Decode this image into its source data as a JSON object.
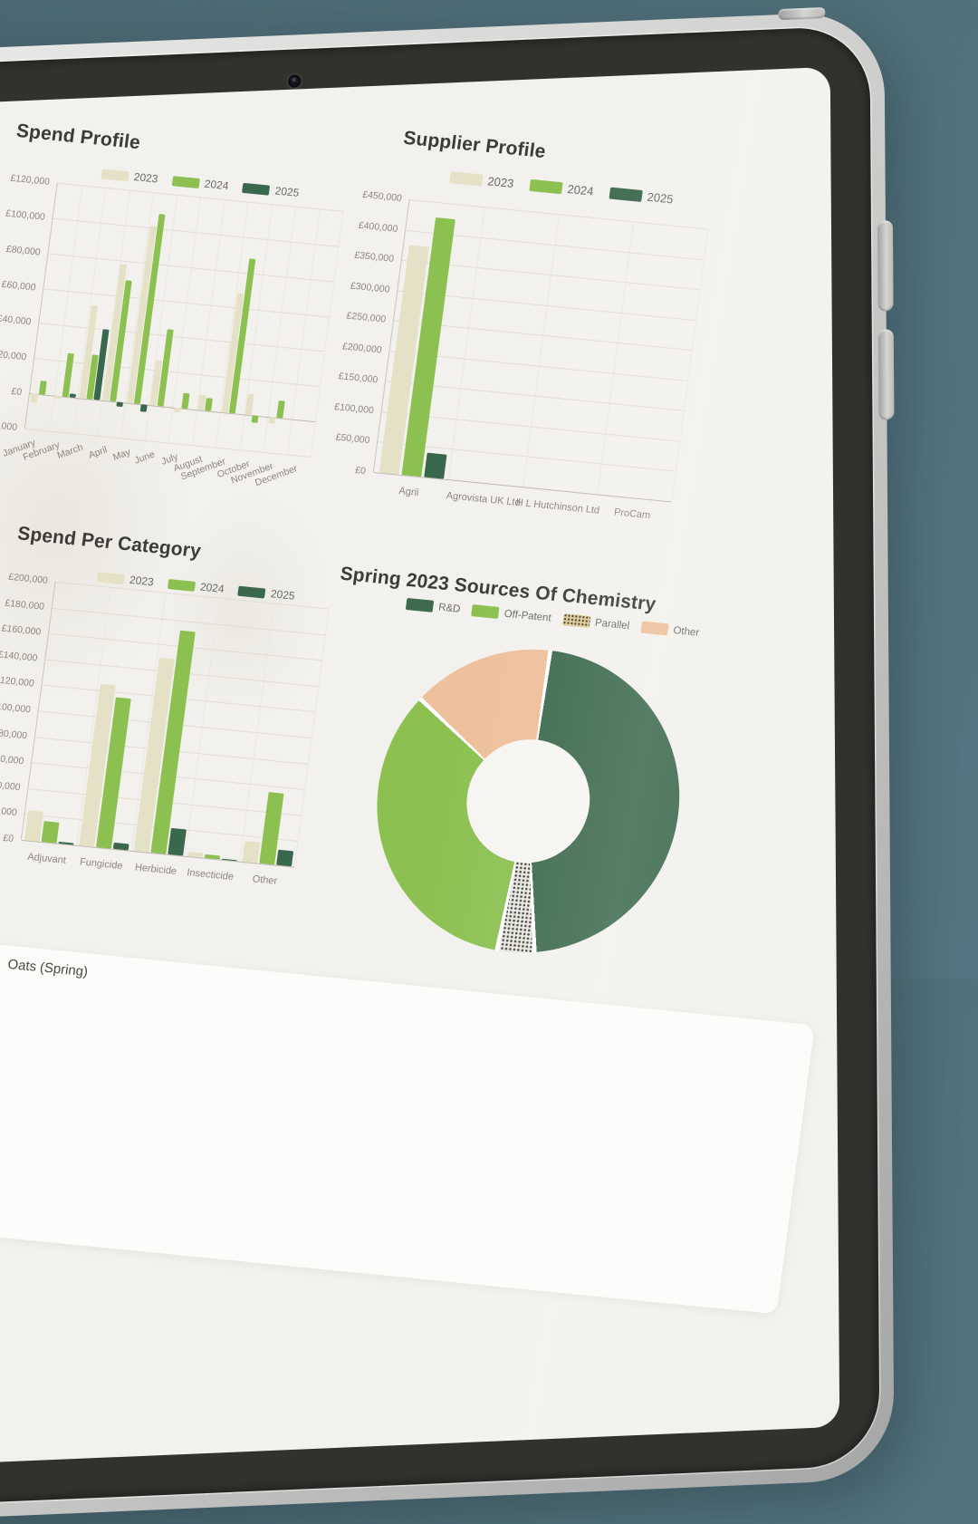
{
  "scene": {
    "background_color": "#507079",
    "device_type": "tablet-mockup",
    "screen_color": "#f3f1ed"
  },
  "series_colors": {
    "y2023": "#e5e1c6",
    "y2024": "#8cc152",
    "y2025": "#3a684c"
  },
  "chart_data": [
    {
      "id": "spend-profile",
      "type": "bar",
      "title": "Spend Profile",
      "y_axis": {
        "min": -20000,
        "max": 120000,
        "step": 20000,
        "prefix": "£"
      },
      "categories": [
        "January",
        "February",
        "March",
        "April",
        "May",
        "June",
        "July",
        "August",
        "September",
        "October",
        "November",
        "December"
      ],
      "series": [
        {
          "name": "2023",
          "color": "#e5e1c6",
          "values": [
            -5000,
            -1500,
            53000,
            78000,
            101000,
            26000,
            -2500,
            9000,
            68000,
            12000,
            -3500,
            0
          ]
        },
        {
          "name": "2024",
          "color": "#8cc152",
          "values": [
            8000,
            25000,
            25500,
            69000,
            108000,
            44000,
            9000,
            7500,
            88000,
            -4000,
            10000,
            0
          ]
        },
        {
          "name": "2025",
          "color": "#3a684c",
          "values": [
            0,
            2000,
            40000,
            -2500,
            -4000,
            0,
            0,
            0,
            0,
            0,
            0,
            0
          ]
        }
      ]
    },
    {
      "id": "supplier-profile",
      "type": "bar",
      "title": "Supplier Profile",
      "y_axis": {
        "min": 0,
        "max": 450000,
        "step": 50000,
        "prefix": "£"
      },
      "categories": [
        "Agrii",
        "Agrovista UK Ltd",
        "H L Hutchinson Ltd",
        "ProCam"
      ],
      "series": [
        {
          "name": "2023",
          "color": "#e5e1c6",
          "values": [
            375000,
            0,
            0,
            0
          ]
        },
        {
          "name": "2024",
          "color": "#8cc152",
          "values": [
            425000,
            0,
            0,
            0
          ]
        },
        {
          "name": "2025",
          "color": "#3a684c",
          "values": [
            40000,
            0,
            0,
            0
          ]
        }
      ]
    },
    {
      "id": "spend-per-category",
      "type": "bar",
      "title": "Spend Per Category",
      "y_axis": {
        "min": 0,
        "max": 200000,
        "step": 20000,
        "prefix": "£"
      },
      "categories": [
        "Adjuvant",
        "Fungicide",
        "Herbicide",
        "Insecticide",
        "Other"
      ],
      "series": [
        {
          "name": "2023",
          "color": "#e5e1c6",
          "values": [
            23000,
            125000,
            150000,
            3500,
            16000
          ]
        },
        {
          "name": "2024",
          "color": "#8cc152",
          "values": [
            16000,
            116000,
            172000,
            3000,
            55000
          ]
        },
        {
          "name": "2025",
          "color": "#3a684c",
          "values": [
            1500,
            5000,
            20000,
            500,
            12000
          ]
        }
      ]
    },
    {
      "id": "sources-of-chemistry",
      "type": "donut",
      "title": "Spring 2023 Sources Of Chemistry",
      "slices": [
        {
          "label": "R&D",
          "color": "#3e6b4f",
          "value": 47
        },
        {
          "label": "Parallel",
          "color": "#e7e5de",
          "pattern": "dots",
          "pattern_color": "#3e3e39",
          "value": 4
        },
        {
          "label": "Off-Patent",
          "color": "#8cc152",
          "value": 34
        },
        {
          "label": "Other",
          "color": "#eec09b",
          "value": 15
        }
      ],
      "legend": [
        "R&D",
        "Off-Patent",
        "Parallel",
        "Other"
      ]
    }
  ],
  "bottom_card": {
    "label": "Oats (Spring)"
  }
}
